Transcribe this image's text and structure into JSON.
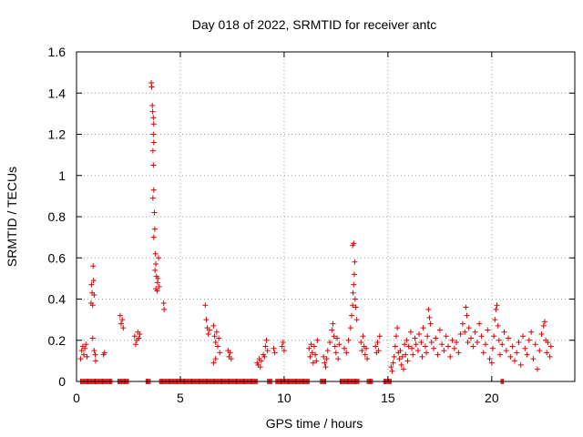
{
  "chart_data": {
    "type": "scatter",
    "title": "Day 018 of 2022, SRMTID for receiver antc",
    "xlabel": "GPS time / hours",
    "ylabel": "SRMTID / TECUs",
    "xlim": [
      0,
      24
    ],
    "ylim": [
      0,
      1.6
    ],
    "xticks": [
      0,
      5,
      10,
      15,
      20
    ],
    "xtick_labels": [
      "0",
      "5",
      "10",
      "15",
      "20"
    ],
    "yticks": [
      0,
      0.2,
      0.4,
      0.6,
      0.8,
      1.0,
      1.2,
      1.4,
      1.6
    ],
    "ytick_labels": [
      "0",
      "0.2",
      "0.4",
      "0.6",
      "0.8",
      "1",
      "1.2",
      "1.4",
      "1.6"
    ],
    "grid": true,
    "marker": "+",
    "series": [
      {
        "name": "SRMTID",
        "color": "#e00000",
        "points": [
          [
            0.2,
            0.11
          ],
          [
            0.25,
            0.15
          ],
          [
            0.3,
            0.17
          ],
          [
            0.35,
            0.13
          ],
          [
            0.4,
            0.16
          ],
          [
            0.45,
            0.18
          ],
          [
            0.5,
            0.12
          ],
          [
            0.7,
            0.38
          ],
          [
            0.72,
            0.47
          ],
          [
            0.75,
            0.43
          ],
          [
            0.78,
            0.37
          ],
          [
            0.8,
            0.56
          ],
          [
            0.82,
            0.49
          ],
          [
            0.85,
            0.42
          ],
          [
            0.78,
            0.21
          ],
          [
            0.85,
            0.15
          ],
          [
            0.9,
            0.13
          ],
          [
            0.92,
            0.1
          ],
          [
            1.3,
            0.13
          ],
          [
            1.35,
            0.14
          ],
          [
            2.1,
            0.32
          ],
          [
            2.15,
            0.28
          ],
          [
            2.2,
            0.3
          ],
          [
            2.25,
            0.26
          ],
          [
            2.8,
            0.22
          ],
          [
            2.85,
            0.18
          ],
          [
            2.9,
            0.2
          ],
          [
            2.95,
            0.24
          ],
          [
            3.0,
            0.21
          ],
          [
            3.05,
            0.23
          ],
          [
            3.6,
            1.45
          ],
          [
            3.62,
            1.43
          ],
          [
            3.65,
            1.34
          ],
          [
            3.67,
            1.31
          ],
          [
            3.7,
            1.28
          ],
          [
            3.72,
            1.25
          ],
          [
            3.7,
            1.2
          ],
          [
            3.72,
            1.16
          ],
          [
            3.68,
            1.12
          ],
          [
            3.7,
            1.05
          ],
          [
            3.72,
            0.93
          ],
          [
            3.68,
            0.89
          ],
          [
            3.75,
            0.82
          ],
          [
            3.77,
            0.74
          ],
          [
            3.72,
            0.7
          ],
          [
            3.8,
            0.62
          ],
          [
            3.82,
            0.57
          ],
          [
            3.78,
            0.54
          ],
          [
            3.85,
            0.51
          ],
          [
            3.9,
            0.48
          ],
          [
            3.82,
            0.45
          ],
          [
            3.88,
            0.44
          ],
          [
            3.95,
            0.6
          ],
          [
            3.92,
            0.5
          ],
          [
            3.98,
            0.46
          ],
          [
            4.2,
            0.38
          ],
          [
            4.22,
            0.35
          ],
          [
            6.2,
            0.37
          ],
          [
            6.25,
            0.3
          ],
          [
            6.3,
            0.26
          ],
          [
            6.35,
            0.23
          ],
          [
            6.4,
            0.25
          ],
          [
            6.6,
            0.27
          ],
          [
            6.65,
            0.22
          ],
          [
            6.7,
            0.19
          ],
          [
            6.75,
            0.24
          ],
          [
            6.8,
            0.17
          ],
          [
            6.85,
            0.21
          ],
          [
            6.9,
            0.14
          ],
          [
            6.7,
            0.11
          ],
          [
            6.6,
            0.09
          ],
          [
            7.3,
            0.15
          ],
          [
            7.35,
            0.12
          ],
          [
            7.4,
            0.14
          ],
          [
            7.45,
            0.11
          ],
          [
            8.7,
            0.09
          ],
          [
            8.75,
            0.08
          ],
          [
            8.8,
            0.11
          ],
          [
            8.85,
            0.07
          ],
          [
            8.9,
            0.1
          ],
          [
            9.0,
            0.13
          ],
          [
            9.05,
            0.12
          ],
          [
            9.1,
            0.17
          ],
          [
            9.15,
            0.2
          ],
          [
            9.2,
            0.15
          ],
          [
            9.5,
            0.16
          ],
          [
            9.55,
            0.14
          ],
          [
            9.9,
            0.17
          ],
          [
            9.95,
            0.19
          ],
          [
            10.0,
            0.15
          ],
          [
            11.2,
            0.16
          ],
          [
            11.25,
            0.12
          ],
          [
            11.3,
            0.18
          ],
          [
            11.35,
            0.14
          ],
          [
            11.4,
            0.09
          ],
          [
            11.45,
            0.17
          ],
          [
            11.5,
            0.13
          ],
          [
            11.55,
            0.1
          ],
          [
            11.6,
            0.2
          ],
          [
            11.9,
            0.12
          ],
          [
            11.95,
            0.09
          ],
          [
            12.0,
            0.07
          ],
          [
            12.05,
            0.11
          ],
          [
            12.1,
            0.15
          ],
          [
            12.2,
            0.19
          ],
          [
            12.3,
            0.25
          ],
          [
            12.35,
            0.28
          ],
          [
            12.4,
            0.22
          ],
          [
            12.45,
            0.17
          ],
          [
            12.5,
            0.14
          ],
          [
            12.55,
            0.21
          ],
          [
            12.6,
            0.11
          ],
          [
            12.65,
            0.18
          ],
          [
            12.9,
            0.16
          ],
          [
            13.0,
            0.14
          ],
          [
            13.1,
            0.2
          ],
          [
            13.2,
            0.26
          ],
          [
            13.25,
            0.32
          ],
          [
            13.3,
            0.37
          ],
          [
            13.32,
            0.43
          ],
          [
            13.35,
            0.47
          ],
          [
            13.38,
            0.52
          ],
          [
            13.3,
            0.66
          ],
          [
            13.35,
            0.67
          ],
          [
            13.4,
            0.58
          ],
          [
            13.42,
            0.4
          ],
          [
            13.45,
            0.36
          ],
          [
            13.5,
            0.3
          ],
          [
            13.7,
            0.19
          ],
          [
            13.75,
            0.15
          ],
          [
            13.8,
            0.22
          ],
          [
            13.85,
            0.17
          ],
          [
            13.9,
            0.13
          ],
          [
            13.95,
            0.16
          ],
          [
            14.0,
            0.11
          ],
          [
            14.4,
            0.17
          ],
          [
            14.45,
            0.14
          ],
          [
            14.5,
            0.19
          ],
          [
            14.55,
            0.15
          ],
          [
            14.6,
            0.22
          ],
          [
            15.15,
            0.07
          ],
          [
            15.2,
            0.05
          ],
          [
            15.25,
            0.09
          ],
          [
            15.3,
            0.12
          ],
          [
            15.35,
            0.17
          ],
          [
            15.4,
            0.22
          ],
          [
            15.45,
            0.26
          ],
          [
            15.5,
            0.14
          ],
          [
            15.55,
            0.11
          ],
          [
            15.6,
            0.15
          ],
          [
            15.65,
            0.08
          ],
          [
            15.7,
            0.12
          ],
          [
            15.75,
            0.06
          ],
          [
            15.8,
            0.18
          ],
          [
            15.85,
            0.13
          ],
          [
            15.9,
            0.2
          ],
          [
            15.95,
            0.1
          ],
          [
            16.0,
            0.17
          ],
          [
            16.1,
            0.24
          ],
          [
            16.15,
            0.16
          ],
          [
            16.2,
            0.13
          ],
          [
            16.3,
            0.21
          ],
          [
            16.35,
            0.18
          ],
          [
            16.45,
            0.15
          ],
          [
            16.5,
            0.23
          ],
          [
            16.6,
            0.19
          ],
          [
            16.65,
            0.12
          ],
          [
            16.7,
            0.26
          ],
          [
            16.8,
            0.17
          ],
          [
            16.85,
            0.14
          ],
          [
            16.9,
            0.22
          ],
          [
            16.95,
            0.35
          ],
          [
            17.0,
            0.31
          ],
          [
            17.05,
            0.28
          ],
          [
            17.1,
            0.19
          ],
          [
            17.2,
            0.16
          ],
          [
            17.3,
            0.21
          ],
          [
            17.4,
            0.13
          ],
          [
            17.5,
            0.25
          ],
          [
            17.6,
            0.18
          ],
          [
            17.7,
            0.15
          ],
          [
            17.8,
            0.22
          ],
          [
            17.9,
            0.17
          ],
          [
            18.0,
            0.12
          ],
          [
            18.1,
            0.2
          ],
          [
            18.2,
            0.16
          ],
          [
            18.3,
            0.19
          ],
          [
            18.4,
            0.14
          ],
          [
            18.5,
            0.23
          ],
          [
            18.6,
            0.28
          ],
          [
            18.7,
            0.24
          ],
          [
            18.75,
            0.36
          ],
          [
            18.8,
            0.32
          ],
          [
            18.85,
            0.19
          ],
          [
            18.9,
            0.26
          ],
          [
            19.0,
            0.21
          ],
          [
            19.1,
            0.17
          ],
          [
            19.2,
            0.24
          ],
          [
            19.3,
            0.19
          ],
          [
            19.4,
            0.28
          ],
          [
            19.5,
            0.22
          ],
          [
            19.6,
            0.14
          ],
          [
            19.7,
            0.18
          ],
          [
            19.8,
            0.25
          ],
          [
            19.9,
            0.11
          ],
          [
            20.0,
            0.09
          ],
          [
            20.05,
            0.16
          ],
          [
            20.1,
            0.22
          ],
          [
            20.15,
            0.3
          ],
          [
            20.2,
            0.35
          ],
          [
            20.25,
            0.37
          ],
          [
            20.3,
            0.27
          ],
          [
            20.35,
            0.2
          ],
          [
            20.4,
            0.13
          ],
          [
            20.5,
            0.18
          ],
          [
            20.6,
            0.24
          ],
          [
            20.7,
            0.15
          ],
          [
            20.8,
            0.21
          ],
          [
            20.9,
            0.12
          ],
          [
            21.0,
            0.17
          ],
          [
            21.1,
            0.1
          ],
          [
            21.2,
            0.14
          ],
          [
            21.3,
            0.19
          ],
          [
            21.4,
            0.08
          ],
          [
            21.5,
            0.22
          ],
          [
            21.6,
            0.16
          ],
          [
            21.7,
            0.13
          ],
          [
            21.8,
            0.2
          ],
          [
            21.9,
            0.24
          ],
          [
            22.0,
            0.11
          ],
          [
            22.1,
            0.18
          ],
          [
            22.2,
            0.06
          ],
          [
            22.3,
            0.15
          ],
          [
            22.4,
            0.23
          ],
          [
            22.5,
            0.27
          ],
          [
            22.55,
            0.29
          ],
          [
            22.6,
            0.2
          ],
          [
            22.65,
            0.14
          ],
          [
            22.7,
            0.19
          ],
          [
            22.8,
            0.12
          ],
          [
            22.85,
            0.17
          ]
        ],
        "zero_ranges": [
          [
            0.2,
            1.7
          ],
          [
            2.0,
            2.5
          ],
          [
            3.35,
            3.55
          ],
          [
            4.0,
            8.7
          ],
          [
            9.2,
            9.4
          ],
          [
            9.6,
            11.2
          ],
          [
            11.75,
            12.0
          ],
          [
            12.7,
            13.6
          ],
          [
            14.0,
            14.25
          ],
          [
            14.8,
            15.15
          ],
          [
            20.45,
            20.55
          ]
        ]
      }
    ]
  }
}
